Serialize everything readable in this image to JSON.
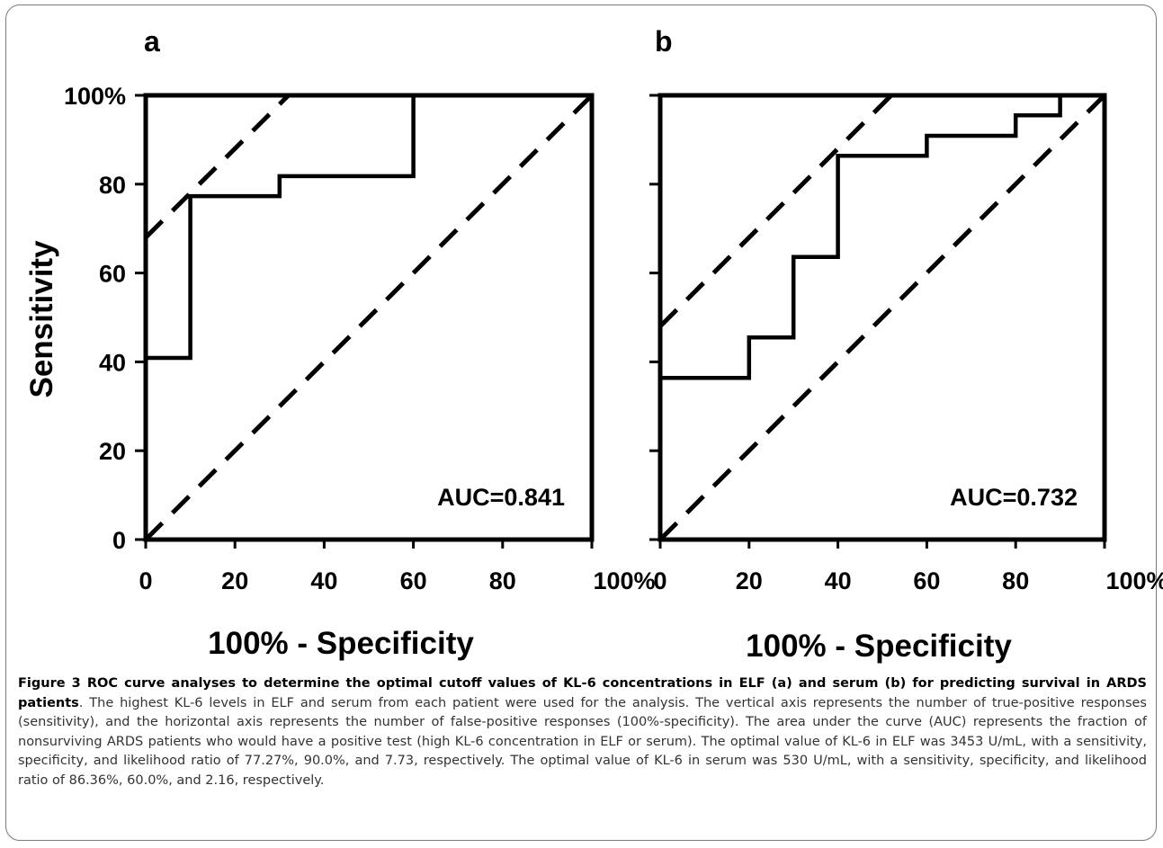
{
  "chart_data": [
    {
      "type": "line",
      "panel_label": "a",
      "xlabel": "100% - Specificity",
      "ylabel": "Sensitivity",
      "xlim": [
        0,
        100
      ],
      "ylim": [
        0,
        100
      ],
      "x_ticks": [
        "0",
        "20",
        "40",
        "60",
        "80",
        "100%"
      ],
      "y_ticks": [
        "0",
        "20",
        "40",
        "60",
        "80",
        "100%"
      ],
      "annotation": "AUC=0.841",
      "series": [
        {
          "style": "solid-step",
          "x": [
            0,
            10,
            10,
            30,
            30,
            60,
            60,
            100
          ],
          "y": [
            40.9,
            40.9,
            77.3,
            77.3,
            81.8,
            81.8,
            100,
            100
          ]
        },
        {
          "style": "dashed",
          "x": [
            0,
            100
          ],
          "y": [
            0,
            100
          ]
        },
        {
          "style": "dashed",
          "x": [
            0,
            32
          ],
          "y": [
            68,
            100
          ]
        }
      ]
    },
    {
      "type": "line",
      "panel_label": "b",
      "xlabel": "100% - Specificity",
      "xlim": [
        0,
        100
      ],
      "ylim": [
        0,
        100
      ],
      "x_ticks": [
        "0",
        "20",
        "40",
        "60",
        "80",
        "100%"
      ],
      "annotation": "AUC=0.732",
      "series": [
        {
          "style": "solid-step",
          "x": [
            0,
            20,
            20,
            30,
            30,
            40,
            40,
            60,
            60,
            80,
            80,
            90,
            90
          ],
          "y": [
            36.4,
            36.4,
            45.5,
            45.5,
            63.6,
            63.6,
            86.4,
            86.4,
            90.9,
            90.9,
            95.5,
            95.5,
            100
          ]
        },
        {
          "style": "dashed",
          "x": [
            0,
            100
          ],
          "y": [
            0,
            100
          ]
        },
        {
          "style": "dashed",
          "x": [
            0,
            52
          ],
          "y": [
            48,
            100
          ]
        }
      ]
    }
  ],
  "caption": {
    "title": "Figure 3 ROC curve analyses to determine the optimal cutoff values of KL-6 concentrations in ELF (a) and serum (b) for predicting survival in ARDS patients",
    "body": ". The highest KL-6 levels in ELF and serum from each patient were used for the analysis. The vertical axis represents the number of true-positive responses (sensitivity), and the horizontal axis represents the number of false-positive responses (100%-specificity). The area under the curve (AUC) represents the fraction of nonsurviving ARDS patients who would have a positive test (high KL-6 concentration in ELF or serum). The optimal value of KL-6 in ELF was 3453 U/mL, with a sensitivity, specificity, and likelihood ratio of 77.27%, 90.0%, and 7.73, respectively. The optimal value of KL-6 in serum was 530 U/mL, with a sensitivity, specificity, and likelihood ratio of 86.36%, 60.0%, and 2.16, respectively."
  }
}
